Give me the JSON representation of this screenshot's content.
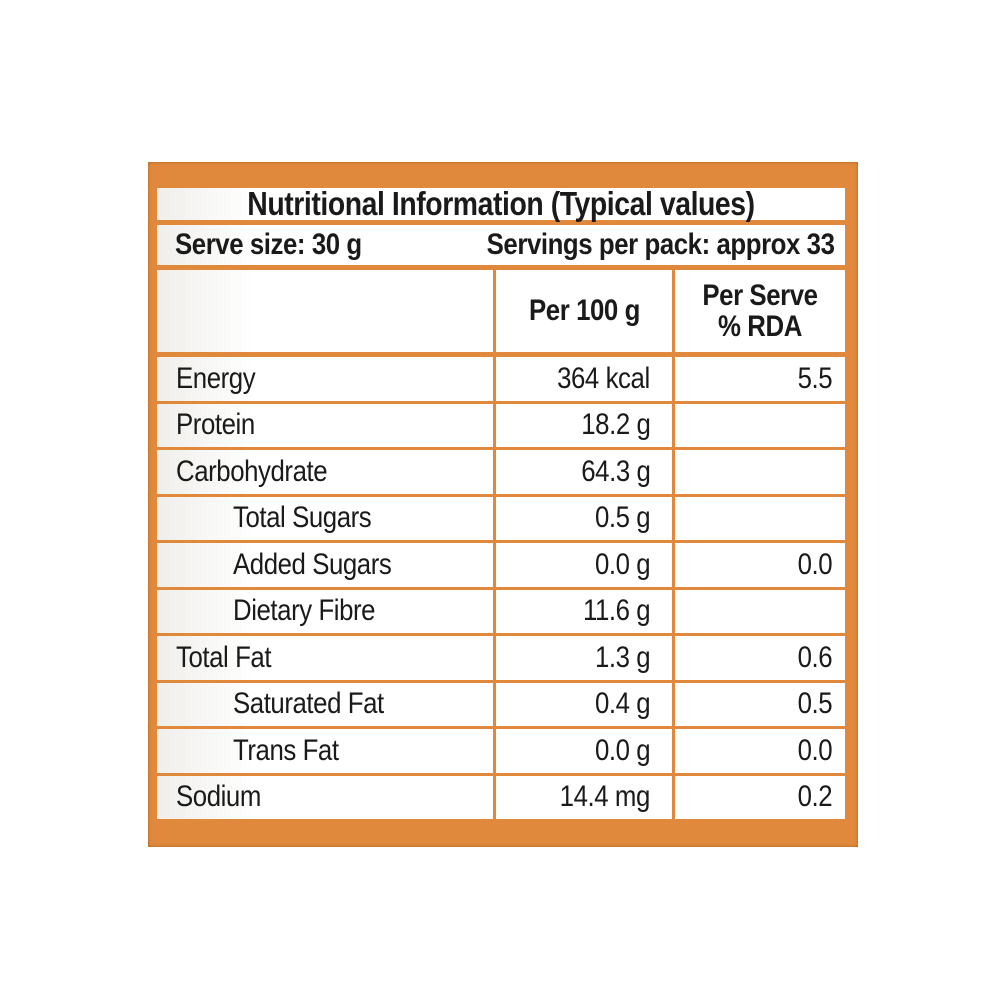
{
  "label": {
    "title": "Nutritional Information (Typical values)",
    "serve_size": "Serve size: 30 g",
    "servings_per_pack": "Servings per pack: approx 33",
    "columns": {
      "per_100g": "Per 100 g",
      "per_serve_line1": "Per Serve",
      "per_serve_line2": "% RDA"
    },
    "rows": [
      {
        "name": "Energy",
        "indent": false,
        "per_100g": "364 kcal",
        "per_serve_rda": "5.5"
      },
      {
        "name": "Protein",
        "indent": false,
        "per_100g": "18.2 g",
        "per_serve_rda": ""
      },
      {
        "name": "Carbohydrate",
        "indent": false,
        "per_100g": "64.3 g",
        "per_serve_rda": ""
      },
      {
        "name": "Total Sugars",
        "indent": true,
        "per_100g": "0.5 g",
        "per_serve_rda": ""
      },
      {
        "name": "Added Sugars",
        "indent": true,
        "per_100g": "0.0 g",
        "per_serve_rda": "0.0"
      },
      {
        "name": "Dietary Fibre",
        "indent": true,
        "per_100g": "11.6 g",
        "per_serve_rda": ""
      },
      {
        "name": "Total Fat",
        "indent": false,
        "per_100g": "1.3 g",
        "per_serve_rda": "0.6"
      },
      {
        "name": "Saturated Fat",
        "indent": true,
        "per_100g": "0.4 g",
        "per_serve_rda": "0.5"
      },
      {
        "name": "Trans Fat",
        "indent": true,
        "per_100g": "0.0 g",
        "per_serve_rda": "0.0"
      },
      {
        "name": "Sodium",
        "indent": false,
        "per_100g": "14.4 mg",
        "per_serve_rda": "0.2"
      }
    ],
    "colors": {
      "frame": "#e0893c",
      "text": "#1a1a1a",
      "cell_bg": "#ffffff"
    }
  }
}
